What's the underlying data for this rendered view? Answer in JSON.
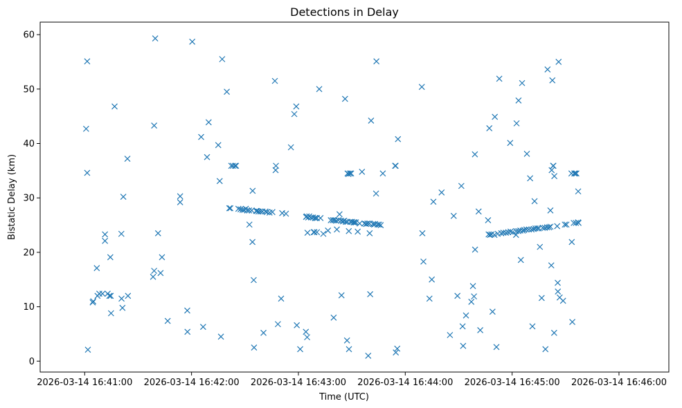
{
  "chart_data": {
    "type": "scatter",
    "title": "Detections in Delay",
    "xlabel": "Time (UTC)",
    "ylabel": "Bistatic Delay (km)",
    "marker": "x",
    "color": "#1f77b4",
    "grid": false,
    "xlim_seconds": [
      -25,
      328
    ],
    "ylim": [
      -2,
      62.3
    ],
    "x_origin": "2026-03-14 16:41:00",
    "x_ticks": [
      {
        "t": 0,
        "label": "2026-03-14 16:41:00"
      },
      {
        "t": 60,
        "label": "2026-03-14 16:42:00"
      },
      {
        "t": 120,
        "label": "2026-03-14 16:43:00"
      },
      {
        "t": 180,
        "label": "2026-03-14 16:44:00"
      },
      {
        "t": 240,
        "label": "2026-03-14 16:45:00"
      },
      {
        "t": 300,
        "label": "2026-03-14 16:46:00"
      }
    ],
    "y_ticks": [
      {
        "v": 0,
        "label": "0"
      },
      {
        "v": 10,
        "label": "10"
      },
      {
        "v": 20,
        "label": "20"
      },
      {
        "v": 30,
        "label": "30"
      },
      {
        "v": 40,
        "label": "40"
      },
      {
        "v": 50,
        "label": "50"
      },
      {
        "v": 60,
        "label": "60"
      }
    ],
    "points": [
      [
        1.4,
        55.1
      ],
      [
        0.8,
        42.7
      ],
      [
        1.4,
        34.6
      ],
      [
        1.8,
        2.1
      ],
      [
        4.5,
        10.8
      ],
      [
        4.8,
        11.0
      ],
      [
        6.8,
        17.1
      ],
      [
        7.2,
        12.0
      ],
      [
        8.2,
        12.4
      ],
      [
        10,
        12.4
      ],
      [
        11.4,
        23.3
      ],
      [
        11.4,
        22.1
      ],
      [
        12.9,
        12.4
      ],
      [
        13.9,
        12.0
      ],
      [
        14.4,
        19.1
      ],
      [
        14.6,
        12.0
      ],
      [
        14.8,
        8.8
      ],
      [
        16.8,
        46.8
      ],
      [
        20.6,
        23.4
      ],
      [
        20.7,
        11.5
      ],
      [
        21.2,
        9.8
      ],
      [
        21.7,
        30.2
      ],
      [
        24,
        37.2
      ],
      [
        24.3,
        12.0
      ],
      [
        38.4,
        15.5
      ],
      [
        39,
        16.6
      ],
      [
        39,
        43.3
      ],
      [
        39.6,
        59.3
      ],
      [
        41.2,
        23.5
      ],
      [
        42.6,
        16.2
      ],
      [
        43.4,
        19.1
      ],
      [
        46.6,
        7.4
      ],
      [
        53.6,
        30.3
      ],
      [
        53.6,
        29.2
      ],
      [
        57.6,
        9.3
      ],
      [
        57.7,
        5.4
      ],
      [
        60.4,
        58.7
      ],
      [
        65.4,
        41.2
      ],
      [
        66.5,
        6.3
      ],
      [
        68.7,
        37.5
      ],
      [
        69.6,
        43.9
      ],
      [
        75,
        39.7
      ],
      [
        75.8,
        33.1
      ],
      [
        76.5,
        4.5
      ],
      [
        77.2,
        55.5
      ],
      [
        79.8,
        49.5
      ],
      [
        81.2,
        28.1
      ],
      [
        81.8,
        28.1
      ],
      [
        82.3,
        35.9
      ],
      [
        83.2,
        35.9
      ],
      [
        84.4,
        35.9
      ],
      [
        85,
        35.9
      ],
      [
        86.3,
        28.0
      ],
      [
        87.5,
        27.9
      ],
      [
        88.6,
        27.8
      ],
      [
        89.5,
        27.8
      ],
      [
        90.5,
        28.0
      ],
      [
        91.2,
        27.7
      ],
      [
        92.3,
        27.7
      ],
      [
        92.5,
        25.1
      ],
      [
        93.8,
        27.7
      ],
      [
        94.2,
        21.9
      ],
      [
        94.3,
        31.3
      ],
      [
        94.9,
        14.9
      ],
      [
        95.1,
        2.5
      ],
      [
        96.3,
        27.6
      ],
      [
        96.7,
        27.6
      ],
      [
        97.6,
        27.5
      ],
      [
        98.7,
        27.5
      ],
      [
        99.8,
        27.5
      ],
      [
        100.4,
        5.2
      ],
      [
        101.5,
        27.5
      ],
      [
        102.3,
        27.4
      ],
      [
        103.8,
        27.3
      ],
      [
        105.4,
        27.4
      ],
      [
        106.8,
        51.5
      ],
      [
        107.2,
        35.1
      ],
      [
        107.4,
        35.9
      ],
      [
        108.5,
        6.8
      ],
      [
        110.3,
        11.5
      ],
      [
        110.9,
        27.2
      ],
      [
        113,
        27.1
      ],
      [
        115.8,
        39.3
      ],
      [
        117.7,
        45.4
      ],
      [
        118.8,
        46.8
      ],
      [
        119.1,
        6.6
      ],
      [
        121,
        2.2
      ],
      [
        124.3,
        26.5
      ],
      [
        124.7,
        26.6
      ],
      [
        124.2,
        5.4
      ],
      [
        124.9,
        4.4
      ],
      [
        125.1,
        23.6
      ],
      [
        125.5,
        26.4
      ],
      [
        126.1,
        26.6
      ],
      [
        127.2,
        26.4
      ],
      [
        128.2,
        26.4
      ],
      [
        128.6,
        23.7
      ],
      [
        129,
        23.7
      ],
      [
        129.3,
        26.3
      ],
      [
        129.6,
        26.3
      ],
      [
        130.4,
        26.3
      ],
      [
        130.4,
        23.7
      ],
      [
        131.7,
        50.0
      ],
      [
        132.4,
        26.3
      ],
      [
        134,
        23.4
      ],
      [
        136.6,
        24.0
      ],
      [
        138.2,
        25.9
      ],
      [
        139.3,
        25.9
      ],
      [
        139.8,
        8.0
      ],
      [
        140.2,
        25.9
      ],
      [
        141.2,
        25.8
      ],
      [
        141.6,
        24.2
      ],
      [
        142.4,
        25.9
      ],
      [
        143.1,
        27.0
      ],
      [
        144,
        25.8
      ],
      [
        144.2,
        12.1
      ],
      [
        145,
        25.7
      ],
      [
        145.7,
        25.8
      ],
      [
        146.2,
        48.2
      ],
      [
        146.6,
        25.6
      ],
      [
        147.3,
        3.8
      ],
      [
        147.5,
        25.6
      ],
      [
        147.6,
        34.5
      ],
      [
        148.1,
        34.4
      ],
      [
        148.3,
        23.9
      ],
      [
        148.4,
        2.2
      ],
      [
        148.9,
        34.5
      ],
      [
        149.2,
        25.6
      ],
      [
        149.6,
        34.5
      ],
      [
        150.1,
        25.6
      ],
      [
        151,
        25.5
      ],
      [
        151.5,
        25.5
      ],
      [
        152.3,
        25.5
      ],
      [
        153.3,
        23.8
      ],
      [
        154.4,
        25.3
      ],
      [
        155.7,
        34.8
      ],
      [
        157.1,
        25.3
      ],
      [
        158,
        25.2
      ],
      [
        158.8,
        25.3
      ],
      [
        159.2,
        1.0
      ],
      [
        159.9,
        25.3
      ],
      [
        160.3,
        12.3
      ],
      [
        160,
        23.5
      ],
      [
        160.8,
        44.2
      ],
      [
        161.9,
        25.2
      ],
      [
        162.5,
        25.1
      ],
      [
        163.1,
        25.2
      ],
      [
        163.6,
        30.8
      ],
      [
        163.8,
        55.1
      ],
      [
        164.5,
        25.1
      ],
      [
        165.3,
        25.1
      ],
      [
        166.2,
        25.0
      ],
      [
        167.4,
        34.5
      ],
      [
        174.3,
        35.9
      ],
      [
        174.6,
        35.9
      ],
      [
        174.7,
        1.6
      ],
      [
        175.5,
        2.3
      ],
      [
        175.9,
        40.8
      ],
      [
        189.3,
        50.4
      ],
      [
        189.6,
        23.5
      ],
      [
        190.2,
        18.3
      ],
      [
        193.6,
        11.5
      ],
      [
        194.9,
        15.0
      ],
      [
        195.8,
        29.3
      ],
      [
        200.4,
        31.0
      ],
      [
        205.1,
        4.8
      ],
      [
        207.2,
        26.7
      ],
      [
        209.3,
        12.0
      ],
      [
        211.5,
        32.2
      ],
      [
        212.5,
        2.8
      ],
      [
        212.2,
        6.4
      ],
      [
        214.1,
        8.4
      ],
      [
        217.1,
        10.9
      ],
      [
        218,
        13.8
      ],
      [
        218.6,
        11.9
      ],
      [
        219.1,
        38.0
      ],
      [
        219.2,
        20.5
      ],
      [
        221.2,
        27.5
      ],
      [
        222.1,
        5.7
      ],
      [
        226.5,
        25.9
      ],
      [
        226.8,
        23.3
      ],
      [
        227.2,
        42.8
      ],
      [
        227.6,
        23.2
      ],
      [
        228.4,
        23.3
      ],
      [
        229,
        9.1
      ],
      [
        230.1,
        23.2
      ],
      [
        230.3,
        44.9
      ],
      [
        231.2,
        2.6
      ],
      [
        231.9,
        23.4
      ],
      [
        232.8,
        51.9
      ],
      [
        233.9,
        23.5
      ],
      [
        235.1,
        23.6
      ],
      [
        236.5,
        23.6
      ],
      [
        237.8,
        23.7
      ],
      [
        238.9,
        40.1
      ],
      [
        239.1,
        23.8
      ],
      [
        240.3,
        23.7
      ],
      [
        242.2,
        23.2
      ],
      [
        242.3,
        23.9
      ],
      [
        242.5,
        43.7
      ],
      [
        243.5,
        23.9
      ],
      [
        243.6,
        47.9
      ],
      [
        244.6,
        24.0
      ],
      [
        244.9,
        18.6
      ],
      [
        245.6,
        51.1
      ],
      [
        246,
        24.0
      ],
      [
        246.8,
        24.1
      ],
      [
        248,
        24.2
      ],
      [
        248.3,
        38.1
      ],
      [
        249.4,
        24.2
      ],
      [
        250.1,
        33.6
      ],
      [
        250.9,
        24.2
      ],
      [
        251.4,
        6.4
      ],
      [
        252.1,
        24.3
      ],
      [
        252.6,
        29.4
      ],
      [
        253.1,
        24.4
      ],
      [
        254.2,
        24.4
      ],
      [
        255,
        24.4
      ],
      [
        255.6,
        21.0
      ],
      [
        256.6,
        11.6
      ],
      [
        257.2,
        24.5
      ],
      [
        258.4,
        24.5
      ],
      [
        258.7,
        2.2
      ],
      [
        259.6,
        24.6
      ],
      [
        260.7,
        24.6
      ],
      [
        259.9,
        53.6
      ],
      [
        261.5,
        24.7
      ],
      [
        261.5,
        27.7
      ],
      [
        262.2,
        35.1
      ],
      [
        262,
        17.6
      ],
      [
        262.6,
        51.6
      ],
      [
        263,
        35.9
      ],
      [
        263.2,
        35.9
      ],
      [
        263.7,
        34.0
      ],
      [
        263.6,
        5.2
      ],
      [
        265.3,
        24.8
      ],
      [
        265.6,
        14.4
      ],
      [
        266.1,
        55.0
      ],
      [
        265.7,
        12.8
      ],
      [
        266.7,
        11.7
      ],
      [
        268.6,
        11.1
      ],
      [
        269.6,
        25.1
      ],
      [
        270.5,
        25.1
      ],
      [
        273.3,
        34.5
      ],
      [
        273.5,
        21.9
      ],
      [
        273.8,
        7.2
      ],
      [
        274.6,
        25.4
      ],
      [
        274.9,
        34.5
      ],
      [
        275.5,
        34.5
      ],
      [
        275.8,
        25.4
      ],
      [
        276.1,
        34.5
      ],
      [
        277,
        25.5
      ],
      [
        277.1,
        31.2
      ],
      [
        277.3,
        25.4
      ]
    ]
  }
}
